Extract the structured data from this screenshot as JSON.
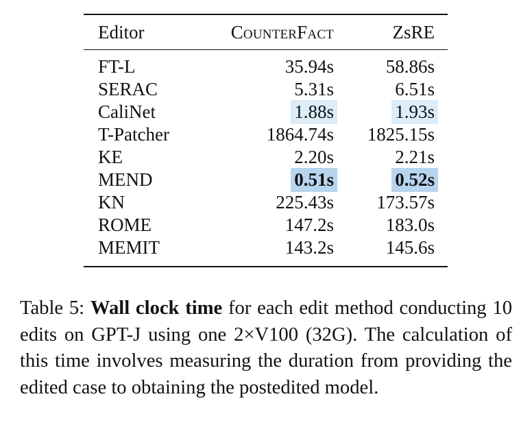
{
  "table": {
    "headers": [
      "Editor",
      "CounterFact",
      "ZsRE"
    ],
    "rows": [
      {
        "editor": "FT-L",
        "counterfact": "35.94s",
        "zsre": "58.86s",
        "highlight": "none"
      },
      {
        "editor": "SERAC",
        "counterfact": "5.31s",
        "zsre": "6.51s",
        "highlight": "none"
      },
      {
        "editor": "CaliNet",
        "counterfact": "1.88s",
        "zsre": "1.93s",
        "highlight": "light"
      },
      {
        "editor": "T-Patcher",
        "counterfact": "1864.74s",
        "zsre": "1825.15s",
        "highlight": "none"
      },
      {
        "editor": "KE",
        "counterfact": "2.20s",
        "zsre": "2.21s",
        "highlight": "none"
      },
      {
        "editor": "MEND",
        "counterfact": "0.51s",
        "zsre": "0.52s",
        "highlight": "strong"
      },
      {
        "editor": "KN",
        "counterfact": "225.43s",
        "zsre": "173.57s",
        "highlight": "none"
      },
      {
        "editor": "ROME",
        "counterfact": "147.2s",
        "zsre": "183.0s",
        "highlight": "none"
      },
      {
        "editor": "MEMIT",
        "counterfact": "143.2s",
        "zsre": "145.6s",
        "highlight": "none"
      }
    ],
    "highlight_colors": {
      "light": "#dcecf8",
      "strong": "#b7d5ef"
    }
  },
  "caption": {
    "label": "Table 5:",
    "bold": "Wall clock time",
    "text": "for each edit method conduct­ing 10 edits on GPT-J using one 2×V100 (32G). The calculation of this time involves measuring the duration from providing the edited case to obtaining the post­edited model."
  }
}
